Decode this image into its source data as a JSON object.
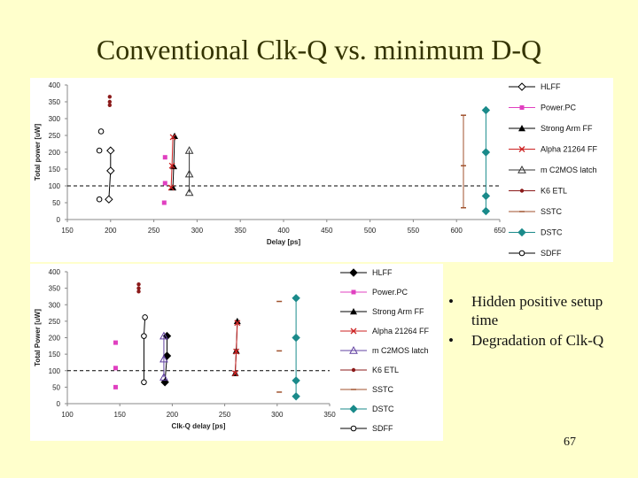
{
  "title": "Conventional Clk-Q vs. minimum D-Q",
  "bullets": [
    {
      "symbol": "•",
      "text": "Hidden positive setup time"
    },
    {
      "symbol": "•",
      "text": "Degradation of  Clk-Q"
    }
  ],
  "page_number": "67",
  "chart_data": [
    {
      "type": "scatter",
      "title": "",
      "xlabel": "Delay [ps]",
      "ylabel": "Total power [uW]",
      "xlim": [
        150,
        650
      ],
      "ylim": [
        0,
        400
      ],
      "xticks": [
        "150",
        "200",
        "250",
        "300",
        "350",
        "400",
        "450",
        "500",
        "550",
        "600",
        "650"
      ],
      "yticks": [
        "0",
        "50",
        "100",
        "150",
        "200",
        "250",
        "300",
        "350",
        "400"
      ],
      "reference_line": 100,
      "series": [
        {
          "name": "HLFF",
          "marker": "diamond-open",
          "color": "#000000",
          "points": [
            [
              198,
              60
            ],
            [
              200,
              145
            ],
            [
              200,
              205
            ]
          ],
          "line": true
        },
        {
          "name": "Power.PC",
          "marker": "square",
          "color": "#e040c0",
          "points": [
            [
              262,
              50
            ],
            [
              263,
              108
            ],
            [
              263,
              185
            ]
          ],
          "line": false
        },
        {
          "name": "Strong Arm FF",
          "marker": "triangle",
          "color": "#000000",
          "points": [
            [
              272,
              95
            ],
            [
              273,
              158
            ],
            [
              274,
              248
            ]
          ],
          "line": true
        },
        {
          "name": "Alpha 21264 FF",
          "marker": "x",
          "color": "#cc2222",
          "points": [
            [
              270,
              95
            ],
            [
              271,
              160
            ],
            [
              272,
              245
            ]
          ],
          "line": true
        },
        {
          "name": "m C2MOS latch",
          "marker": "triangle-open",
          "color": "#333333",
          "points": [
            [
              291,
              80
            ],
            [
              291,
              135
            ],
            [
              291,
              205
            ]
          ],
          "line": true
        },
        {
          "name": "K6 ETL",
          "marker": "circle",
          "color": "#8b1a1a",
          "points": [
            [
              199,
              340
            ],
            [
              199,
              350
            ],
            [
              199,
              365
            ]
          ],
          "line": false
        },
        {
          "name": "SSTC",
          "marker": "dash",
          "color": "#a0522d",
          "points": [
            [
              608,
              35
            ],
            [
              608,
              160
            ],
            [
              608,
              310
            ]
          ],
          "line": true
        },
        {
          "name": "DSTC",
          "marker": "diamond",
          "color": "#1a8a8a",
          "points": [
            [
              634,
              25
            ],
            [
              634,
              70
            ],
            [
              634,
              200
            ],
            [
              634,
              325
            ]
          ],
          "line": true
        },
        {
          "name": "SDFF",
          "marker": "circle-open",
          "color": "#000000",
          "points": [
            [
              187,
              60
            ],
            [
              187,
              205
            ],
            [
              189,
              262
            ]
          ],
          "line": false
        }
      ]
    },
    {
      "type": "scatter",
      "title": "",
      "xlabel": "Clk-Q delay [ps]",
      "ylabel": "Total Power [uW]",
      "xlim": [
        100,
        350
      ],
      "ylim": [
        0,
        400
      ],
      "xticks": [
        "100",
        "150",
        "200",
        "250",
        "300",
        "350"
      ],
      "yticks": [
        "0",
        "50",
        "100",
        "150",
        "200",
        "250",
        "300",
        "350",
        "400"
      ],
      "reference_line": 100,
      "series": [
        {
          "name": "HLFF",
          "marker": "diamond",
          "color": "#000000",
          "points": [
            [
              193,
              65
            ],
            [
              195,
              145
            ],
            [
              195,
              205
            ]
          ],
          "line": true
        },
        {
          "name": "Power.PC",
          "marker": "square",
          "color": "#e040c0",
          "points": [
            [
              146,
              50
            ],
            [
              146,
              108
            ],
            [
              146,
              185
            ]
          ],
          "line": false
        },
        {
          "name": "Strong Arm FF",
          "marker": "triangle",
          "color": "#000000",
          "points": [
            [
              260,
              92
            ],
            [
              261,
              160
            ],
            [
              262,
              250
            ]
          ],
          "line": true
        },
        {
          "name": "Alpha 21264 FF",
          "marker": "x",
          "color": "#cc2222",
          "points": [
            [
              260,
              92
            ],
            [
              261,
              158
            ],
            [
              262,
              245
            ]
          ],
          "line": true
        },
        {
          "name": "m C2MOS latch",
          "marker": "triangle-open",
          "color": "#6040a0",
          "points": [
            [
              192,
              80
            ],
            [
              192,
              135
            ],
            [
              192,
              205
            ]
          ],
          "line": true
        },
        {
          "name": "K6 ETL",
          "marker": "circle",
          "color": "#8b1a1a",
          "points": [
            [
              168,
              340
            ],
            [
              168,
              350
            ],
            [
              168,
              362
            ]
          ],
          "line": false
        },
        {
          "name": "SSTC",
          "marker": "dash",
          "color": "#a0522d",
          "points": [
            [
              302,
              35
            ],
            [
              302,
              160
            ],
            [
              302,
              310
            ]
          ],
          "line": false
        },
        {
          "name": "DSTC",
          "marker": "diamond",
          "color": "#1a8a8a",
          "points": [
            [
              318,
              22
            ],
            [
              318,
              70
            ],
            [
              318,
              200
            ],
            [
              318,
              320
            ]
          ],
          "line": true
        },
        {
          "name": "SDFF",
          "marker": "circle-open",
          "color": "#000000",
          "points": [
            [
              173,
              65
            ],
            [
              173,
              205
            ],
            [
              174,
              262
            ]
          ],
          "line": true
        }
      ]
    }
  ]
}
